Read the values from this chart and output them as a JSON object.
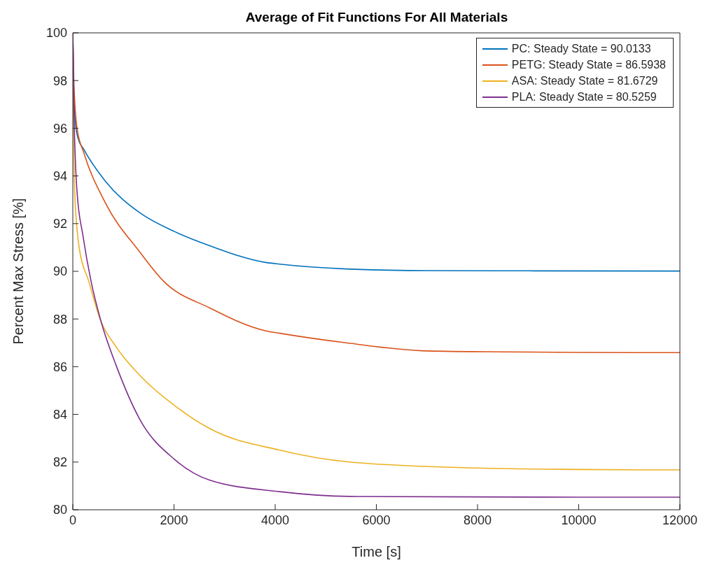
{
  "chart_data": {
    "type": "line",
    "title": "Average of Fit Functions For All Materials",
    "xlabel": "Time [s]",
    "ylabel": "Percent Max Stress [%]",
    "xlim": [
      0,
      12000
    ],
    "xticks": [
      0,
      2000,
      4000,
      6000,
      8000,
      10000,
      12000
    ],
    "ylim": [
      80,
      100
    ],
    "yticks": [
      80,
      82,
      84,
      86,
      88,
      90,
      92,
      94,
      96,
      98,
      100
    ],
    "grid": false,
    "legend": "top right",
    "marker": "none",
    "line_style": "solid",
    "series": [
      {
        "name": "PC: Steady State = 90.0133",
        "color": "#0072bd",
        "x": [
          0,
          15,
          40,
          100,
          221,
          636,
          1327,
          2018,
          2710,
          3816,
          4092,
          5406,
          7010,
          9000,
          12000
        ],
        "values": [
          100,
          98,
          96.5,
          95.6,
          95.1,
          93.8,
          92.45,
          91.66,
          91.07,
          90.37,
          90.3,
          90.1,
          90.03,
          90.02,
          90.01
        ]
      },
      {
        "name": "PETG: Steady State = 86.5938",
        "color": "#d95319",
        "x": [
          0,
          20,
          83,
          221,
          636,
          1327,
          1787,
          2710,
          3816,
          4092,
          5406,
          7010,
          8599,
          10000,
          12000
        ],
        "values": [
          100,
          98,
          96,
          94.95,
          92.9,
          90.8,
          89.6,
          88.46,
          87.5,
          87.4,
          87.0,
          86.66,
          86.62,
          86.6,
          86.59
        ]
      },
      {
        "name": "ASA: Steady State = 81.6729",
        "color": "#edb120",
        "x": [
          0,
          10,
          37,
          129,
          313,
          544,
          866,
          1327,
          2018,
          2710,
          4092,
          5475,
          8000,
          10000,
          12000
        ],
        "values": [
          100,
          97,
          93.35,
          90.95,
          89.6,
          87.97,
          86.8,
          85.63,
          84.36,
          83.4,
          82.5,
          82.0,
          81.75,
          81.69,
          81.67
        ]
      },
      {
        "name": "PLA: Steady State = 80.5259",
        "color": "#7e2f8e",
        "x": [
          0,
          20,
          83,
          200,
          359,
          544,
          866,
          1327,
          2018,
          2710,
          4092,
          5475,
          8000,
          10000,
          12000
        ],
        "values": [
          100,
          97,
          93.35,
          91.5,
          89.6,
          88.0,
          86.0,
          83.78,
          82.1,
          81.24,
          80.76,
          80.56,
          80.54,
          80.53,
          80.53
        ]
      }
    ]
  }
}
